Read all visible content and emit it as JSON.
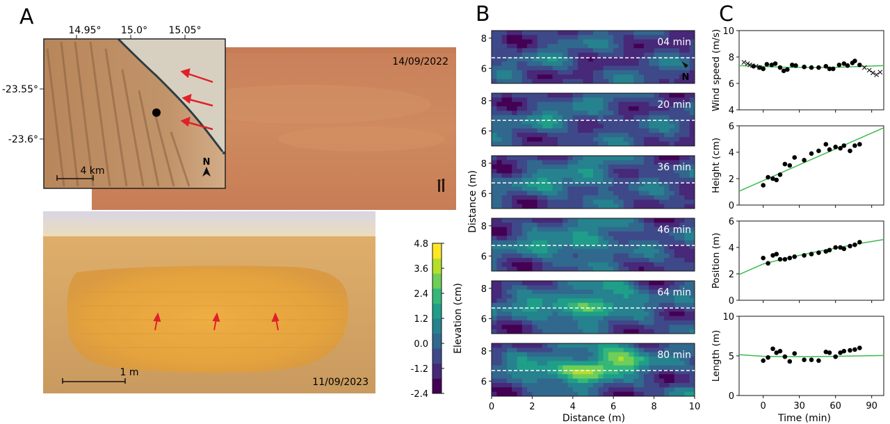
{
  "panel_letters": {
    "a": "A",
    "b": "B",
    "c": "C"
  },
  "map_inset": {
    "lon_ticks": [
      "14.95°",
      "15.0°",
      "15.05°"
    ],
    "lat_ticks": [
      "-23.55°",
      "-23.6°"
    ],
    "scalebar": "4 km",
    "north": "N"
  },
  "photo_top": {
    "date": "14/09/2022"
  },
  "photo_bottom": {
    "date": "11/09/2023",
    "scalebar": "1 m"
  },
  "colorbar": {
    "label": "Elevation (cm)",
    "ticks": [
      "4.8",
      "3.6",
      "2.4",
      "1.2",
      "0.0",
      "-1.2",
      "-2.4"
    ],
    "tick_values": [
      4.8,
      3.6,
      2.4,
      1.2,
      0.0,
      -1.2,
      -2.4
    ],
    "range": [
      -2.4,
      4.8
    ],
    "colors": [
      "#440154",
      "#482878",
      "#3e4989",
      "#31688e",
      "#26828e",
      "#1f9e89",
      "#35b779",
      "#6ece58",
      "#b5de2b",
      "#fde725"
    ]
  },
  "panel_b": {
    "snapshots": [
      {
        "label": "04 min",
        "t": 4
      },
      {
        "label": "20 min",
        "t": 20
      },
      {
        "label": "36 min",
        "t": 36
      },
      {
        "label": "46 min",
        "t": 46
      },
      {
        "label": "64 min",
        "t": 64
      },
      {
        "label": "80 min",
        "t": 80
      }
    ],
    "ylabel": "Distance (m)",
    "xlabel": "Distance (m)",
    "x_ticks": [
      "0",
      "2",
      "4",
      "6",
      "8",
      "10"
    ],
    "y_ticks": [
      "8",
      "6"
    ],
    "xlim": [
      0,
      10
    ],
    "ylim": [
      5,
      8.5
    ],
    "transect_y": 6.7,
    "north": "N"
  },
  "chart_data": [
    {
      "type": "scatter",
      "ylabel": "Wind speed (m/s)",
      "ylim": [
        4,
        10
      ],
      "xlim": [
        -20,
        100
      ],
      "y_ticks": [
        "4",
        "6",
        "8",
        "10"
      ],
      "y_tick_values": [
        4,
        6,
        8,
        10
      ],
      "dots": {
        "x": [
          -8,
          -3,
          0,
          3,
          7,
          10,
          14,
          17,
          20,
          24,
          27,
          34,
          40,
          46,
          52,
          55,
          58,
          63,
          67,
          70,
          74,
          76,
          80
        ],
        "y": [
          7.3,
          7.2,
          7.1,
          7.45,
          7.4,
          7.5,
          7.2,
          6.95,
          7.05,
          7.4,
          7.35,
          7.25,
          7.2,
          7.2,
          7.3,
          7.1,
          7.1,
          7.4,
          7.5,
          7.35,
          7.55,
          7.7,
          7.4
        ]
      },
      "crosses": {
        "x": [
          -16,
          -13,
          -11,
          -9,
          -6,
          -3,
          84,
          88,
          91,
          94,
          97
        ],
        "y": [
          7.6,
          7.5,
          7.4,
          7.35,
          7.3,
          7.2,
          7.2,
          7.0,
          6.8,
          6.65,
          6.85
        ]
      },
      "fit": {
        "x": [
          -20,
          0,
          20,
          40,
          60,
          80,
          100
        ],
        "y": [
          7.35,
          7.28,
          7.22,
          7.2,
          7.22,
          7.28,
          7.35
        ]
      }
    },
    {
      "type": "scatter",
      "ylabel": "Height (cm)",
      "ylim": [
        0,
        6
      ],
      "xlim": [
        -20,
        100
      ],
      "y_ticks": [
        "0",
        "2",
        "4",
        "6"
      ],
      "y_tick_values": [
        0,
        2,
        4,
        6
      ],
      "dots": {
        "x": [
          0,
          4,
          8,
          11,
          14,
          18,
          22,
          26,
          34,
          40,
          46,
          52,
          55,
          60,
          64,
          67,
          72,
          76,
          80
        ],
        "y": [
          1.5,
          2.1,
          2.0,
          1.9,
          2.3,
          3.1,
          3.0,
          3.6,
          3.4,
          3.9,
          4.1,
          4.6,
          4.2,
          4.4,
          4.3,
          4.5,
          4.1,
          4.5,
          4.6
        ]
      },
      "fit": {
        "x": [
          -20,
          100
        ],
        "y": [
          1.05,
          5.85
        ]
      }
    },
    {
      "type": "scatter",
      "ylabel": "Position (m)",
      "ylim": [
        0,
        6
      ],
      "xlim": [
        -20,
        100
      ],
      "y_ticks": [
        "0",
        "2",
        "4",
        "6"
      ],
      "y_tick_values": [
        0,
        2,
        4,
        6
      ],
      "dots": {
        "x": [
          0,
          4,
          8,
          11,
          14,
          18,
          22,
          26,
          34,
          40,
          46,
          52,
          55,
          60,
          64,
          67,
          72,
          76,
          80
        ],
        "y": [
          3.2,
          2.8,
          3.4,
          3.5,
          3.1,
          3.1,
          3.2,
          3.3,
          3.4,
          3.5,
          3.6,
          3.7,
          3.8,
          4.0,
          4.0,
          3.9,
          4.1,
          4.2,
          4.4
        ]
      },
      "fit": {
        "x": [
          -20,
          0,
          20,
          40,
          60,
          80,
          100
        ],
        "y": [
          1.95,
          2.75,
          3.2,
          3.6,
          3.95,
          4.3,
          4.6
        ]
      }
    },
    {
      "type": "scatter",
      "xlabel": "Time (min)",
      "ylabel": "Length (m)",
      "ylim": [
        0,
        10
      ],
      "xlim": [
        -20,
        100
      ],
      "x_ticks": [
        "0",
        "30",
        "60",
        "90"
      ],
      "x_tick_values": [
        0,
        30,
        60,
        90
      ],
      "y_ticks": [
        "0",
        "5",
        "10"
      ],
      "y_tick_values": [
        0,
        5,
        10
      ],
      "dots": {
        "x": [
          0,
          4,
          8,
          11,
          14,
          18,
          22,
          26,
          34,
          40,
          46,
          52,
          55,
          60,
          64,
          67,
          72,
          76,
          80
        ],
        "y": [
          4.4,
          4.8,
          5.9,
          5.4,
          5.6,
          4.9,
          4.3,
          5.3,
          4.5,
          4.5,
          4.4,
          5.5,
          5.4,
          4.9,
          5.4,
          5.6,
          5.7,
          5.8,
          6.0
        ]
      },
      "fit": {
        "x": [
          -20,
          0,
          20,
          40,
          60,
          80,
          100
        ],
        "y": [
          5.15,
          4.95,
          4.9,
          4.9,
          4.95,
          5.0,
          5.05
        ]
      }
    }
  ]
}
